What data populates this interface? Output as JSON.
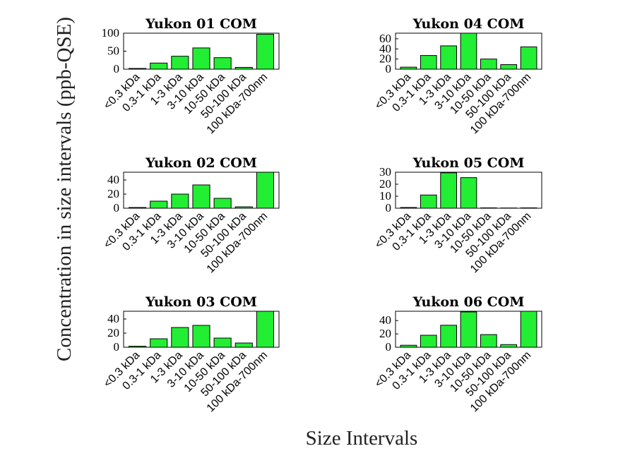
{
  "figure": {
    "ylabel": "Concentration in size intervals (ppb-QSE)",
    "xlabel": "Size Intervals"
  },
  "chart_data": [
    {
      "type": "bar",
      "title": "Yukon 01 COM",
      "categories": [
        "<0.3 kDa",
        "0.3-1 kDa",
        "1-3 kDa",
        "3-10 kDa",
        "10-50 kDa",
        "50-100 kDa",
        "100 kDa-700nm"
      ],
      "values": [
        2,
        17,
        36,
        59,
        32,
        5,
        97
      ],
      "ylim": [
        0,
        100
      ],
      "yticks": [
        0,
        50,
        100
      ],
      "bar_color": "#22ee33"
    },
    {
      "type": "bar",
      "title": "Yukon 04 COM",
      "categories": [
        "<0.3 kDa",
        "0.3-1 kDa",
        "1-3 kDa",
        "3-10 kDa",
        "10-50 kDa",
        "50-100 kDa",
        "100 kDa-700nm"
      ],
      "values": [
        4,
        27,
        46,
        71,
        20,
        9,
        44
      ],
      "ylim": [
        0,
        71
      ],
      "yticks": [
        0,
        20,
        40,
        60
      ],
      "bar_color": "#22ee33"
    },
    {
      "type": "bar",
      "title": "Yukon 02 COM",
      "categories": [
        "<0.3 kDa",
        "0.3-1 kDa",
        "1-3 kDa",
        "3-10 kDa",
        "10-50 kDa",
        "50-100 kDa",
        "100 kDa-700nm"
      ],
      "values": [
        1,
        10,
        20,
        33,
        14,
        2,
        51
      ],
      "ylim": [
        0,
        51
      ],
      "yticks": [
        0,
        20,
        40
      ],
      "bar_color": "#22ee33"
    },
    {
      "type": "bar",
      "title": "Yukon 05 COM",
      "categories": [
        "<0.3 kDa",
        "0.3-1 kDa",
        "1-3 kDa",
        "3-10 kDa",
        "10-50 kDa",
        "50-100 kDa",
        "100 kDa-700nm"
      ],
      "values": [
        0.6,
        11,
        29.5,
        25.5,
        0.3,
        0.2,
        0.3
      ],
      "ylim": [
        0,
        30
      ],
      "yticks": [
        0,
        10,
        20,
        30
      ],
      "bar_color": "#22ee33"
    },
    {
      "type": "bar",
      "title": "Yukon 03 COM",
      "categories": [
        "<0.3 kDa",
        "0.3-1 kDa",
        "1-3 kDa",
        "3-10 kDa",
        "10-50 kDa",
        "50-100 kDa",
        "100 kDa-700nm"
      ],
      "values": [
        1.5,
        12,
        28,
        31,
        13,
        6,
        51
      ],
      "ylim": [
        0,
        51
      ],
      "yticks": [
        0,
        20,
        40
      ],
      "bar_color": "#22ee33"
    },
    {
      "type": "bar",
      "title": "Yukon 06 COM",
      "categories": [
        "<0.3 kDa",
        "0.3-1 kDa",
        "1-3 kDa",
        "3-10 kDa",
        "10-50 kDa",
        "50-100 kDa",
        "100 kDa-700nm"
      ],
      "values": [
        3,
        18,
        33,
        53,
        19,
        4,
        54
      ],
      "ylim": [
        0,
        54
      ],
      "yticks": [
        0,
        20,
        40
      ],
      "bar_color": "#22ee33"
    }
  ]
}
